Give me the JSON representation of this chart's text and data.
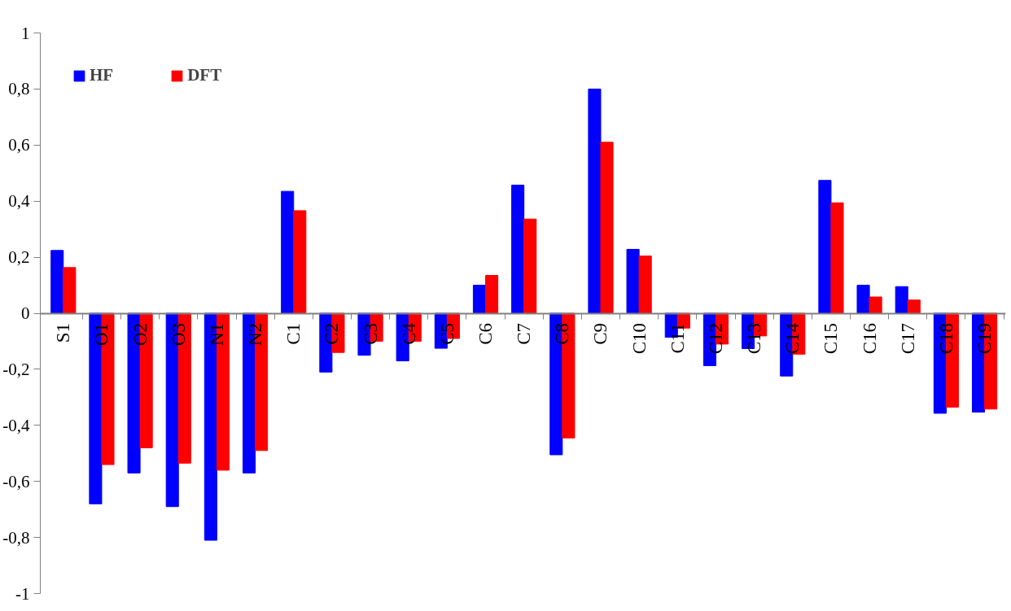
{
  "chart_data": {
    "type": "bar",
    "categories": [
      "S1",
      "O1",
      "O2",
      "O3",
      "N1",
      "N2",
      "C1",
      "C2",
      "C3",
      "C4",
      "C5",
      "C6",
      "C7",
      "C8",
      "C9",
      "C10",
      "C11",
      "C12",
      "C13",
      "C14",
      "C15",
      "C16",
      "C17",
      "C18",
      "C19"
    ],
    "series": [
      {
        "name": "HF",
        "color": "#0000ff",
        "values": [
          0.224,
          -0.68,
          -0.57,
          -0.69,
          -0.81,
          -0.57,
          0.435,
          -0.21,
          -0.15,
          -0.17,
          -0.125,
          0.1,
          0.457,
          -0.505,
          0.8,
          0.228,
          -0.086,
          -0.187,
          -0.126,
          -0.224,
          0.474,
          0.1,
          0.095,
          -0.357,
          -0.353
        ]
      },
      {
        "name": "DFT",
        "color": "#ff0000",
        "values": [
          0.163,
          -0.54,
          -0.48,
          -0.535,
          -0.56,
          -0.49,
          0.366,
          -0.14,
          -0.1,
          -0.1,
          -0.09,
          0.135,
          0.336,
          -0.445,
          0.61,
          0.204,
          -0.053,
          -0.11,
          -0.081,
          -0.146,
          0.394,
          0.058,
          0.047,
          -0.335,
          -0.342
        ]
      }
    ],
    "ylim": [
      -1,
      1
    ],
    "yticks": [
      {
        "value": -1,
        "label": "-1"
      },
      {
        "value": -0.8,
        "label": "-0,8"
      },
      {
        "value": -0.6,
        "label": "-0,6"
      },
      {
        "value": -0.4,
        "label": "-0,4"
      },
      {
        "value": -0.2,
        "label": "-0,2"
      },
      0,
      {
        "value": 0.2,
        "label": "0,2"
      },
      {
        "value": 0.4,
        "label": "0,4"
      },
      {
        "value": 0.6,
        "label": "0,6"
      },
      {
        "value": 0.8,
        "label": "0,8"
      },
      1
    ],
    "grid": false,
    "legend": "top left"
  }
}
